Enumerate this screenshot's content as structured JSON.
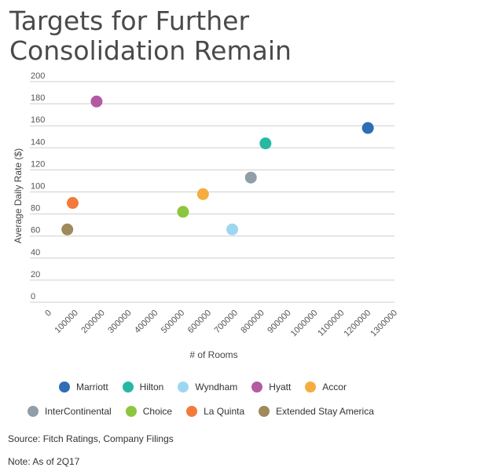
{
  "chart_data": {
    "type": "scatter",
    "title": "Targets for Further Consolidation Remain",
    "xlabel": "# of Rooms",
    "ylabel": "Average Daily Rate ($)",
    "xlim": [
      0,
      1300000
    ],
    "ylim": [
      0,
      200
    ],
    "xticks": [
      "0",
      "100000",
      "200000",
      "300000",
      "400000",
      "500000",
      "600000",
      "700000",
      "800000",
      "900000",
      "1000000",
      "1100000",
      "1200000",
      "1300000"
    ],
    "yticks": [
      "0",
      "20",
      "40",
      "60",
      "80",
      "100",
      "120",
      "140",
      "160",
      "180",
      "200"
    ],
    "grid": true,
    "legend_position": "bottom",
    "series": [
      {
        "name": "Marriott",
        "color": "#2f6db5",
        "points": [
          {
            "x": 1200000,
            "y": 158
          }
        ]
      },
      {
        "name": "Hilton",
        "color": "#26b8a3",
        "points": [
          {
            "x": 815000,
            "y": 144
          }
        ]
      },
      {
        "name": "Wyndham",
        "color": "#9ed6f2",
        "points": [
          {
            "x": 690000,
            "y": 66
          }
        ]
      },
      {
        "name": "Hyatt",
        "color": "#b35aa3",
        "points": [
          {
            "x": 180000,
            "y": 182
          }
        ]
      },
      {
        "name": "Accor",
        "color": "#f5ad3f",
        "points": [
          {
            "x": 580000,
            "y": 98
          }
        ]
      },
      {
        "name": "InterContinental",
        "color": "#8f9ea8",
        "points": [
          {
            "x": 760000,
            "y": 113
          }
        ]
      },
      {
        "name": "Choice",
        "color": "#8cc63f",
        "points": [
          {
            "x": 505000,
            "y": 82
          }
        ]
      },
      {
        "name": "La Quinta",
        "color": "#f47a3c",
        "points": [
          {
            "x": 90000,
            "y": 90
          }
        ]
      },
      {
        "name": "Extended Stay America",
        "color": "#9e8a5a",
        "points": [
          {
            "x": 70000,
            "y": 66
          }
        ]
      }
    ]
  },
  "footer": {
    "source": "Source: Fitch Ratings, Company Filings",
    "note": "Note: As of 2Q17"
  }
}
